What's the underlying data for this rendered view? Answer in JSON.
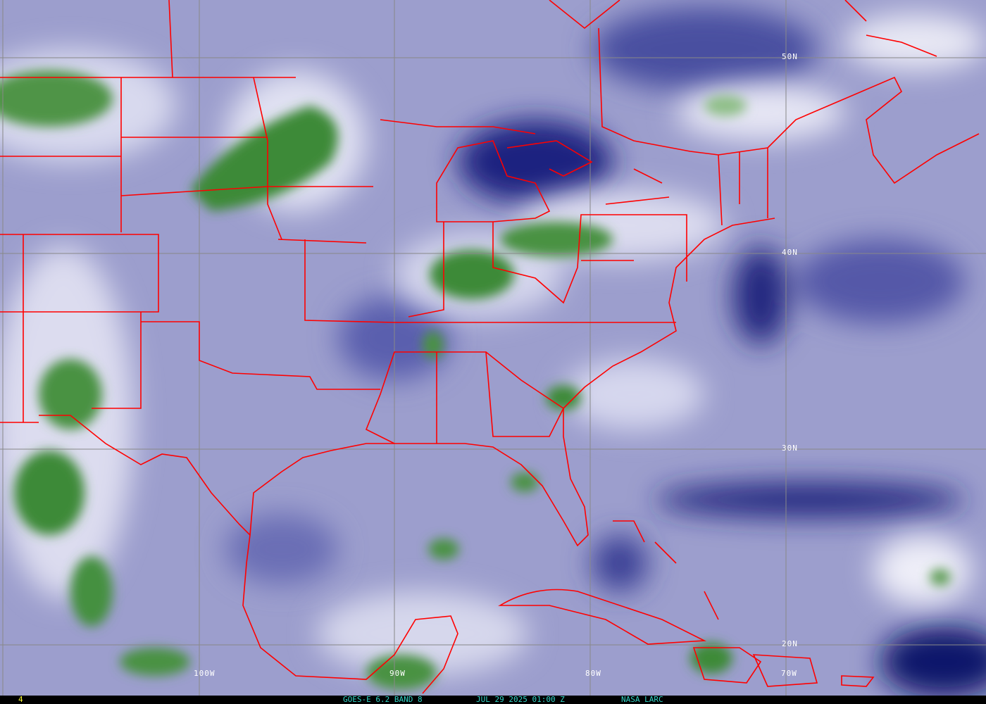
{
  "image": {
    "type": "satellite water vapor imagery with map overlay",
    "colors": {
      "dry": "#1a1f7a",
      "moist": "#c8cae4",
      "cloud": "#f4f4fa",
      "deep_convection": "#3f8a3a",
      "borders": "#ff0000",
      "grid": "#808080",
      "caption": "#33d6c8",
      "frame_number": "#ffff33"
    }
  },
  "grid": {
    "latitudes": [
      "50N",
      "40N",
      "30N",
      "20N"
    ],
    "longitudes": [
      "100W",
      "90W",
      "80W",
      "70W"
    ]
  },
  "caption": {
    "frame": "4",
    "product": "GOES-E 6.2 BAND 8",
    "timestamp": "JUL 29 2025 01:00 Z",
    "source": "NASA LARC"
  }
}
